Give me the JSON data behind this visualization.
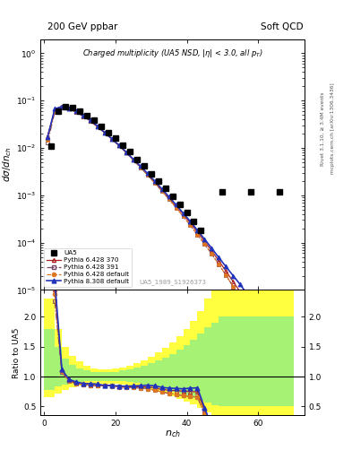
{
  "title_left": "200 GeV ppbar",
  "title_right": "Soft QCD",
  "plot_title": "Charged multiplicity (UA5 NSD, |\\eta| < 3.0, all p_{T})",
  "ylabel_main": "d\\sigma/dn_{ch}",
  "ylabel_ratio": "Ratio to UA5",
  "xlabel": "n_{ch}",
  "right_label1": "Rivet 3.1.10, ≥ 3.4M events",
  "right_label2": "mcplots.cern.ch [arXiv:1306.3436]",
  "watermark": "UA5_1989_S1926373",
  "ylim_main": [
    1e-05,
    2.0
  ],
  "xlim": [
    -1,
    73
  ],
  "ua5_x": [
    2,
    4,
    6,
    8,
    10,
    12,
    14,
    16,
    18,
    20,
    22,
    24,
    26,
    28,
    30,
    32,
    34,
    36,
    38,
    40,
    42,
    44,
    50,
    58,
    66
  ],
  "ua5_y": [
    0.011,
    0.06,
    0.075,
    0.07,
    0.06,
    0.049,
    0.038,
    0.029,
    0.021,
    0.016,
    0.0115,
    0.0083,
    0.0057,
    0.0041,
    0.0028,
    0.002,
    0.0014,
    0.00095,
    0.00065,
    0.00043,
    0.00028,
    0.00018,
    0.0012,
    0.0012,
    0.0012
  ],
  "py6_370_x": [
    1,
    3,
    5,
    7,
    9,
    11,
    13,
    15,
    17,
    19,
    21,
    23,
    25,
    27,
    29,
    31,
    33,
    35,
    37,
    39,
    41,
    43,
    45,
    47,
    49,
    51,
    53,
    55,
    57,
    59,
    61,
    63,
    65,
    67,
    69
  ],
  "py6_370_y": [
    0.018,
    0.063,
    0.074,
    0.068,
    0.058,
    0.047,
    0.037,
    0.028,
    0.021,
    0.0155,
    0.0113,
    0.0081,
    0.0057,
    0.004,
    0.0028,
    0.00192,
    0.00131,
    0.00089,
    0.0006,
    0.0004,
    0.00026,
    0.000167,
    0.000106,
    6.7e-05,
    4.1e-05,
    2.5e-05,
    1.5e-05,
    9e-06,
    5.2e-06,
    2.9e-06,
    1.5e-06,
    7.5e-07,
    3.4e-07,
    1.4e-07,
    5e-08
  ],
  "py6_391_x": [
    1,
    3,
    5,
    7,
    9,
    11,
    13,
    15,
    17,
    19,
    21,
    23,
    25,
    27,
    29,
    31,
    33,
    35,
    37,
    39,
    41,
    43,
    45,
    47,
    49,
    51,
    53,
    55,
    57,
    59,
    61,
    63,
    65,
    67,
    69
  ],
  "py6_391_y": [
    0.013,
    0.058,
    0.072,
    0.067,
    0.057,
    0.047,
    0.037,
    0.028,
    0.021,
    0.0155,
    0.0113,
    0.008,
    0.0056,
    0.0039,
    0.0027,
    0.00183,
    0.00124,
    0.00083,
    0.00055,
    0.00036,
    0.000231,
    0.000147,
    9.24e-05,
    5.72e-05,
    3.47e-05,
    2.05e-05,
    1.18e-05,
    6.5e-06,
    3.4e-06,
    1.7e-06,
    7.8e-07,
    3.3e-07,
    1.3e-07,
    4.5e-08,
    1.4e-08
  ],
  "py6_def_x": [
    1,
    3,
    5,
    7,
    9,
    11,
    13,
    15,
    17,
    19,
    21,
    23,
    25,
    27,
    29,
    31,
    33,
    35,
    37,
    39,
    41,
    43,
    45,
    47,
    49,
    51,
    53,
    55,
    57
  ],
  "py6_def_y": [
    0.015,
    0.061,
    0.073,
    0.067,
    0.057,
    0.047,
    0.037,
    0.028,
    0.021,
    0.0154,
    0.0112,
    0.008,
    0.0056,
    0.0039,
    0.0027,
    0.00183,
    0.00124,
    0.00083,
    0.00055,
    0.00036,
    0.000232,
    0.000148,
    9.29e-05,
    5.74e-05,
    3.47e-05,
    2.05e-05,
    1.18e-05,
    6.5e-06,
    3.4e-06
  ],
  "py8_def_x": [
    1,
    3,
    5,
    7,
    9,
    11,
    13,
    15,
    17,
    19,
    21,
    23,
    25,
    27,
    29,
    31,
    33,
    35,
    37,
    39,
    41,
    43,
    45,
    47,
    49,
    51,
    53,
    55,
    57,
    59,
    61,
    63,
    65,
    67,
    69
  ],
  "py8_def_y": [
    0.017,
    0.067,
    0.075,
    0.069,
    0.059,
    0.048,
    0.038,
    0.029,
    0.021,
    0.0156,
    0.0114,
    0.0082,
    0.0058,
    0.0041,
    0.0029,
    0.002,
    0.00137,
    0.00093,
    0.00063,
    0.00042,
    0.00028,
    0.000182,
    0.000118,
    7.6e-05,
    4.8e-05,
    3.1e-05,
    2e-05,
    1.3e-05,
    8e-06,
    4.8e-06,
    2.7e-06,
    1.4e-06,
    6.5e-07,
    2.6e-07,
    8e-08
  ],
  "color_py6_370": "#aa2222",
  "color_py6_391": "#774466",
  "color_py6_def": "#dd7722",
  "color_py8_def": "#2233bb",
  "ratio_ylim": [
    0.35,
    2.45
  ],
  "ratio_yticks": [
    0.5,
    1.0,
    1.5,
    2.0
  ],
  "yellow_band_x": [
    0,
    2,
    4,
    6,
    8,
    10,
    12,
    14,
    16,
    18,
    20,
    22,
    24,
    26,
    28,
    30,
    32,
    34,
    36,
    38,
    40,
    42,
    44,
    46,
    48,
    50,
    52,
    54,
    56,
    58,
    60,
    62,
    64,
    66,
    68,
    70
  ],
  "yellow_lo": [
    0.65,
    0.65,
    0.72,
    0.78,
    0.82,
    0.85,
    0.87,
    0.88,
    0.88,
    0.88,
    0.88,
    0.87,
    0.85,
    0.83,
    0.8,
    0.77,
    0.74,
    0.71,
    0.67,
    0.63,
    0.58,
    0.53,
    0.47,
    0.4,
    0.35,
    0.35,
    0.35,
    0.35,
    0.35,
    0.35,
    0.35,
    0.35,
    0.35,
    0.35,
    0.35,
    0.35
  ],
  "yellow_hi": [
    2.3,
    2.3,
    1.8,
    1.5,
    1.35,
    1.25,
    1.18,
    1.14,
    1.12,
    1.12,
    1.13,
    1.15,
    1.18,
    1.22,
    1.27,
    1.33,
    1.4,
    1.48,
    1.57,
    1.68,
    1.8,
    1.93,
    2.1,
    2.3,
    2.45,
    2.45,
    2.45,
    2.45,
    2.45,
    2.45,
    2.45,
    2.45,
    2.45,
    2.45,
    2.45,
    2.45
  ],
  "green_band_x": [
    0,
    2,
    4,
    6,
    8,
    10,
    12,
    14,
    16,
    18,
    20,
    22,
    24,
    26,
    28,
    30,
    32,
    34,
    36,
    38,
    40,
    42,
    44,
    46,
    48,
    50,
    52,
    54,
    56,
    58,
    60,
    62,
    64,
    66,
    68,
    70
  ],
  "green_lo": [
    0.78,
    0.78,
    0.83,
    0.87,
    0.9,
    0.91,
    0.92,
    0.93,
    0.93,
    0.93,
    0.93,
    0.92,
    0.91,
    0.89,
    0.87,
    0.84,
    0.82,
    0.79,
    0.75,
    0.72,
    0.68,
    0.64,
    0.6,
    0.56,
    0.52,
    0.5,
    0.5,
    0.5,
    0.5,
    0.5,
    0.5,
    0.5,
    0.5,
    0.5,
    0.5,
    0.5
  ],
  "green_hi": [
    1.8,
    1.8,
    1.5,
    1.3,
    1.2,
    1.14,
    1.1,
    1.08,
    1.07,
    1.07,
    1.08,
    1.1,
    1.12,
    1.15,
    1.18,
    1.22,
    1.27,
    1.32,
    1.38,
    1.45,
    1.53,
    1.62,
    1.72,
    1.82,
    1.9,
    2.0,
    2.0,
    2.0,
    2.0,
    2.0,
    2.0,
    2.0,
    2.0,
    2.0,
    2.0,
    2.0
  ]
}
